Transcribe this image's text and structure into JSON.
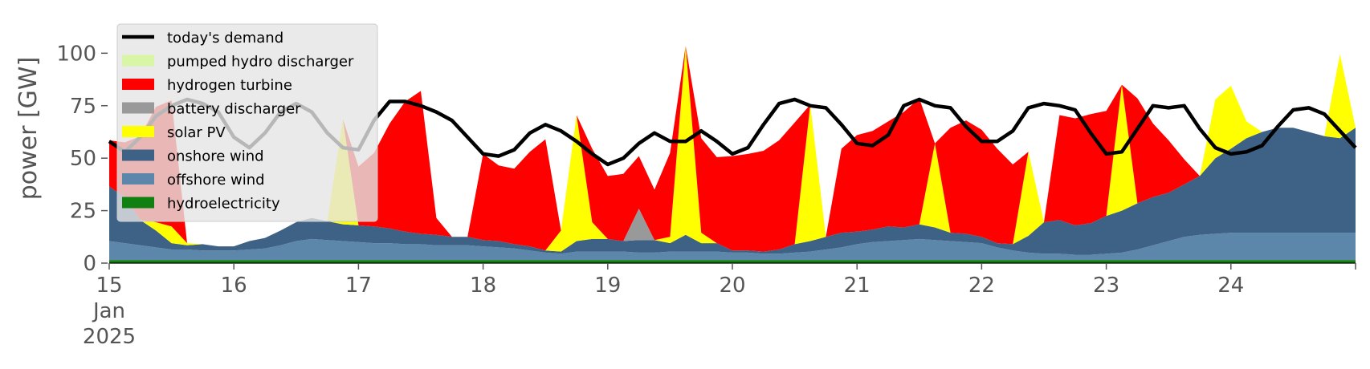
{
  "chart_data": {
    "type": "area",
    "stacked": true,
    "ylabel": "power [GW]",
    "ylim": [
      0,
      120
    ],
    "yticks": [
      0,
      25,
      50,
      75,
      100
    ],
    "xlim": [
      0,
      240
    ],
    "x_unit": "hours since 2025-01-15 00:00",
    "x_ticks": [
      {
        "x": 0,
        "lines": [
          "15",
          "Jan",
          "2025"
        ]
      },
      {
        "x": 24,
        "lines": [
          "16"
        ]
      },
      {
        "x": 48,
        "lines": [
          "17"
        ]
      },
      {
        "x": 72,
        "lines": [
          "18"
        ]
      },
      {
        "x": 96,
        "lines": [
          "19"
        ]
      },
      {
        "x": 120,
        "lines": [
          "20"
        ]
      },
      {
        "x": 144,
        "lines": [
          "21"
        ]
      },
      {
        "x": 168,
        "lines": [
          "22"
        ]
      },
      {
        "x": 192,
        "lines": [
          "23"
        ]
      },
      {
        "x": 216,
        "lines": [
          "24"
        ]
      }
    ],
    "grid": false,
    "legend_position": "top-left",
    "background": "#ffffff",
    "legend_entries": [
      {
        "label": "today's demand",
        "kind": "line",
        "color": "#000000"
      },
      {
        "label": "pumped hydro discharger",
        "kind": "patch",
        "color": "#d9f5a6"
      },
      {
        "label": "hydrogen turbine",
        "kind": "patch",
        "color": "#ff0000"
      },
      {
        "label": "battery discharger",
        "kind": "patch",
        "color": "#999999"
      },
      {
        "label": "solar PV",
        "kind": "patch",
        "color": "#ffff00"
      },
      {
        "label": "onshore wind",
        "kind": "patch",
        "color": "#3d6285"
      },
      {
        "label": "offshore wind",
        "kind": "patch",
        "color": "#5d86ab"
      },
      {
        "label": "hydroelectricity",
        "kind": "patch",
        "color": "#118011"
      }
    ],
    "x": [
      0,
      3,
      6,
      9,
      12,
      15,
      18,
      21,
      24,
      27,
      30,
      33,
      36,
      39,
      42,
      45,
      48,
      51,
      54,
      57,
      60,
      63,
      66,
      69,
      72,
      75,
      78,
      81,
      84,
      87,
      90,
      93,
      96,
      99,
      102,
      105,
      108,
      111,
      114,
      117,
      120,
      123,
      126,
      129,
      132,
      135,
      138,
      141,
      144,
      147,
      150,
      153,
      156,
      159,
      162,
      165,
      168,
      171,
      174,
      177,
      180,
      183,
      186,
      189,
      192,
      195,
      198,
      201,
      204,
      207,
      210,
      213,
      216,
      219,
      222,
      225,
      228,
      231,
      234,
      237,
      240
    ],
    "series": [
      {
        "name": "hydroelectricity",
        "color": "#118011",
        "values": [
          1.5,
          1.5,
          1.5,
          1.5,
          1.5,
          1.5,
          1.5,
          1.5,
          1.5,
          1.5,
          1.5,
          1.5,
          1.5,
          1.5,
          1.5,
          1.5,
          1.5,
          1.5,
          1.5,
          1.5,
          1.5,
          1.5,
          1.5,
          1.5,
          1.5,
          1.5,
          1.5,
          1.5,
          1.5,
          1.5,
          1.5,
          1.5,
          1.5,
          1.5,
          1.5,
          1.5,
          1.5,
          1.5,
          1.5,
          1.5,
          1.5,
          1.5,
          1.5,
          1.5,
          1.5,
          1.5,
          1.5,
          1.5,
          1.5,
          1.5,
          1.5,
          1.5,
          1.5,
          1.5,
          1.5,
          1.5,
          1.5,
          1.5,
          1.5,
          1.5,
          1.5,
          1.5,
          1.5,
          1.5,
          1.5,
          1.5,
          1.5,
          1.5,
          1.5,
          1.5,
          1.5,
          1.5,
          1.5,
          1.5,
          1.5,
          1.5,
          1.5,
          1.5,
          1.5,
          1.5,
          1.5
        ]
      },
      {
        "name": "offshore wind",
        "color": "#5d86ab",
        "values": [
          9,
          8,
          7,
          6,
          5,
          5,
          4.5,
          4.5,
          4.5,
          5,
          5.5,
          7,
          9,
          10,
          9.5,
          9,
          8.5,
          8,
          8,
          7.5,
          7.5,
          7,
          7,
          7,
          6.5,
          6,
          5.5,
          4.5,
          3.5,
          3,
          4,
          4,
          4,
          4,
          3.5,
          3.5,
          4,
          4,
          4,
          4,
          3.5,
          3.5,
          3,
          3,
          3.5,
          4,
          5,
          6,
          7.5,
          8.5,
          9,
          9.5,
          10,
          9.5,
          9,
          8.5,
          8,
          6,
          4.5,
          3.5,
          3,
          3,
          2.5,
          2.5,
          3,
          3.5,
          5,
          7,
          9,
          11,
          12,
          12.5,
          13,
          13,
          13,
          13,
          13,
          13,
          13,
          13,
          13
        ]
      },
      {
        "name": "onshore wind",
        "color": "#3d6285",
        "values": [
          26,
          22,
          12,
          8,
          3,
          2,
          3,
          2,
          2,
          4,
          5,
          7,
          9,
          10,
          9,
          8,
          8,
          8,
          7,
          6,
          5,
          5,
          4,
          4,
          3,
          3,
          2,
          2,
          1,
          1,
          5,
          6,
          6,
          5,
          6,
          6,
          4,
          8,
          4,
          4,
          1,
          1,
          1,
          2,
          4,
          5,
          6,
          7,
          6,
          6,
          7,
          6,
          7,
          6,
          4,
          4,
          3,
          2,
          3,
          8,
          15,
          16,
          14,
          15,
          18,
          20,
          22,
          23,
          23,
          25,
          28,
          36,
          40,
          45,
          48,
          50,
          50,
          48,
          46,
          45,
          50
        ]
      },
      {
        "name": "solar PV",
        "color": "#ffff00",
        "values": [
          0,
          0,
          0,
          4,
          8,
          1,
          0,
          0,
          0,
          0,
          0,
          0,
          0,
          0,
          0,
          50,
          0,
          0,
          0,
          0,
          0,
          0,
          0,
          0,
          0,
          0,
          0,
          0,
          0,
          10,
          60,
          8,
          0,
          0,
          0,
          0,
          3,
          90,
          5,
          0,
          0,
          0,
          0,
          0,
          0,
          65,
          0,
          0,
          0,
          0,
          0,
          0,
          0,
          40,
          0,
          0,
          0,
          0,
          0,
          40,
          0,
          0,
          0,
          0,
          0,
          60,
          0,
          0,
          0,
          0,
          0,
          28,
          30,
          8,
          0,
          0,
          0,
          0,
          0,
          40,
          0
        ]
      },
      {
        "name": "battery discharger",
        "color": "#999999",
        "values": [
          0,
          0,
          0,
          0,
          0,
          0,
          0,
          0,
          0,
          0,
          0,
          0,
          0,
          0,
          0,
          0,
          0,
          0,
          0,
          0,
          0,
          0,
          0,
          0,
          0,
          0,
          0,
          0,
          0,
          0,
          0,
          0,
          0,
          0,
          15,
          0,
          0,
          0,
          0,
          0,
          0,
          0,
          0,
          0,
          0,
          0,
          0,
          0,
          0,
          0,
          0,
          0,
          0,
          0,
          0,
          0,
          0,
          0,
          0,
          0,
          0,
          0,
          0,
          0,
          0,
          0,
          0,
          0,
          0,
          0,
          0,
          0,
          0,
          0,
          0,
          0,
          0,
          0,
          0,
          0,
          0
        ]
      },
      {
        "name": "hydrogen turbine",
        "color": "#ff0000",
        "values": [
          22,
          26,
          40,
          55,
          60,
          0,
          0,
          0,
          0,
          0,
          0,
          0,
          0,
          0,
          0,
          0,
          28,
          35,
          50,
          62,
          68,
          8,
          0,
          0,
          41,
          36,
          36,
          45,
          53,
          0,
          0,
          35,
          30,
          32,
          25,
          24,
          40,
          0,
          45,
          41,
          45,
          46,
          48,
          52,
          58,
          0,
          0,
          40,
          46,
          47,
          50,
          55,
          60,
          0,
          50,
          54,
          51,
          45,
          38,
          0,
          0,
          50,
          51,
          52,
          50,
          0,
          50,
          35,
          25,
          12,
          0,
          0,
          0,
          0,
          0,
          0,
          0,
          0,
          0,
          0,
          0
        ]
      },
      {
        "name": "pumped hydro discharger",
        "color": "#d9f5a6",
        "values": [
          0,
          0,
          0,
          0,
          0,
          0,
          0,
          0,
          0,
          0,
          0,
          0,
          0,
          0,
          0,
          0,
          0,
          0,
          0,
          0,
          0,
          0,
          0,
          0,
          0,
          0,
          0,
          0,
          0,
          0,
          0,
          0,
          0,
          0,
          0,
          0,
          0,
          0,
          0,
          0,
          0,
          0,
          0,
          0,
          0,
          0,
          0,
          0,
          0,
          0,
          0,
          0,
          0,
          0,
          0,
          0,
          0,
          0,
          0,
          0,
          0,
          0,
          0,
          0,
          0,
          0,
          0,
          0,
          0,
          0,
          0,
          0,
          0,
          0,
          0,
          0,
          0,
          0,
          0,
          0,
          0
        ]
      },
      {
        "name": "today's demand",
        "color": "#000000",
        "kind": "line",
        "values": [
          58,
          53,
          60,
          70,
          75,
          78,
          76,
          72,
          60,
          55,
          62,
          72,
          76,
          72,
          62,
          55,
          54,
          68,
          77,
          77,
          75,
          72,
          68,
          60,
          52,
          51,
          54,
          62,
          66,
          63,
          58,
          52,
          47,
          50,
          57,
          62,
          58,
          58,
          63,
          58,
          52,
          55,
          66,
          76,
          78,
          75,
          74,
          66,
          57,
          56,
          61,
          75,
          78,
          75,
          74,
          65,
          58,
          58,
          63,
          74,
          76,
          75,
          73,
          62,
          52,
          53,
          64,
          75,
          74,
          75,
          64,
          55,
          52,
          53,
          56,
          65,
          73,
          74,
          71,
          63,
          55
        ]
      }
    ]
  }
}
